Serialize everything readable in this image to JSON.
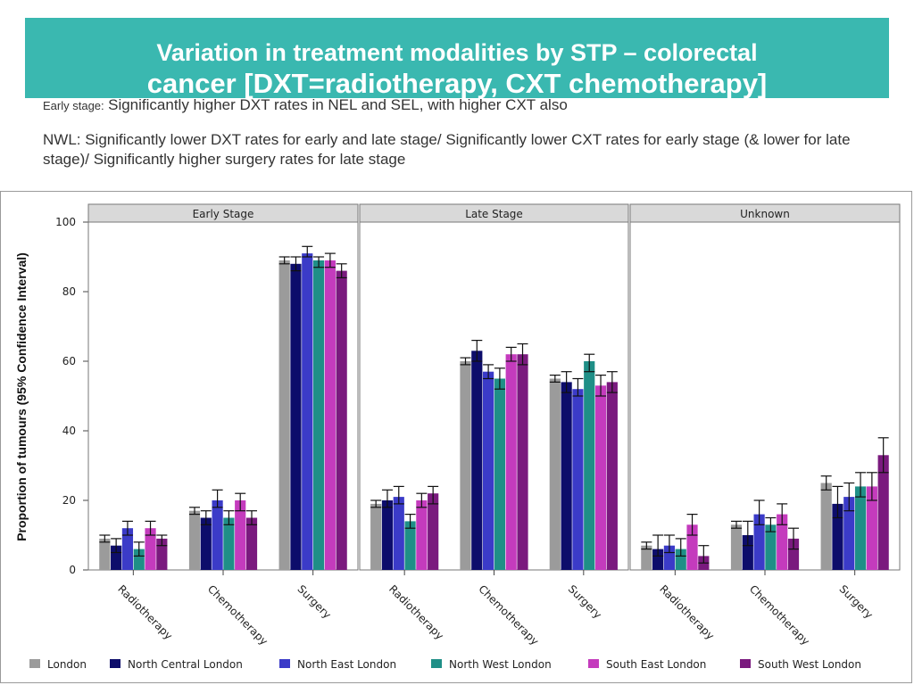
{
  "banner": {
    "line1": "Variation in treatment modalities by STP – colorectal",
    "line2": "cancer [DXT=radiotherapy, CXT chemotherapy]"
  },
  "notes": {
    "early_prefix": "Early stage:",
    "early_text": "Significantly higher DXT rates in NEL and SEL, with higher CXT also",
    "nwl_text": "NWL: Significantly lower DXT rates for early and late stage/ Significantly lower CXT rates for early stage (& lower for late stage)/ Significantly higher surgery rates for late stage"
  },
  "colors": {
    "London": "#9b9b9b",
    "North Central London": "#0d0d6b",
    "North East London": "#3b3bc8",
    "North West London": "#1f8f87",
    "South East London": "#c43bbd",
    "South West London": "#7a1a7e"
  },
  "chart_data": {
    "type": "bar",
    "ylabel": "Proportion of tumours (95% Confidence Interval)",
    "ylim": [
      0,
      100
    ],
    "yticks": [
      0,
      20,
      40,
      60,
      80,
      100
    ],
    "panels": [
      "Early Stage",
      "Late Stage",
      "Unknown"
    ],
    "categories": [
      "Radiotherapy",
      "Chemotherapy",
      "Surgery"
    ],
    "series": [
      {
        "name": "London",
        "values": [
          [
            9,
            17,
            89
          ],
          [
            19,
            60,
            55
          ],
          [
            7,
            13,
            25
          ]
        ],
        "lo": [
          [
            8,
            16,
            88
          ],
          [
            18,
            59,
            54
          ],
          [
            6,
            12,
            23
          ]
        ],
        "hi": [
          [
            10,
            18,
            90
          ],
          [
            20,
            61,
            56
          ],
          [
            8,
            14,
            27
          ]
        ]
      },
      {
        "name": "North Central London",
        "values": [
          [
            7,
            15,
            88
          ],
          [
            20,
            63,
            54
          ],
          [
            6,
            10,
            19
          ]
        ],
        "lo": [
          [
            5,
            13,
            86
          ],
          [
            18,
            60,
            51
          ],
          [
            4,
            7,
            15
          ]
        ],
        "hi": [
          [
            9,
            17,
            90
          ],
          [
            23,
            66,
            57
          ],
          [
            10,
            14,
            24
          ]
        ]
      },
      {
        "name": "North East London",
        "values": [
          [
            12,
            20,
            91
          ],
          [
            21,
            57,
            52
          ],
          [
            7,
            16,
            21
          ]
        ],
        "lo": [
          [
            10,
            18,
            90
          ],
          [
            19,
            55,
            50
          ],
          [
            5,
            13,
            17
          ]
        ],
        "hi": [
          [
            14,
            23,
            93
          ],
          [
            24,
            59,
            55
          ],
          [
            10,
            20,
            25
          ]
        ]
      },
      {
        "name": "North West London",
        "values": [
          [
            6,
            15,
            89
          ],
          [
            14,
            55,
            60
          ],
          [
            6,
            13,
            24
          ]
        ],
        "lo": [
          [
            4,
            13,
            87
          ],
          [
            12,
            52,
            57
          ],
          [
            4,
            11,
            21
          ]
        ],
        "hi": [
          [
            8,
            17,
            90
          ],
          [
            16,
            58,
            62
          ],
          [
            9,
            15,
            28
          ]
        ]
      },
      {
        "name": "South East London",
        "values": [
          [
            12,
            20,
            89
          ],
          [
            20,
            62,
            53
          ],
          [
            13,
            16,
            24
          ]
        ],
        "lo": [
          [
            10,
            17,
            87
          ],
          [
            18,
            60,
            50
          ],
          [
            10,
            13,
            20
          ]
        ],
        "hi": [
          [
            14,
            22,
            91
          ],
          [
            22,
            64,
            56
          ],
          [
            16,
            19,
            28
          ]
        ]
      },
      {
        "name": "South West London",
        "values": [
          [
            9,
            15,
            86
          ],
          [
            22,
            62,
            54
          ],
          [
            4,
            9,
            33
          ]
        ],
        "lo": [
          [
            7,
            13,
            84
          ],
          [
            19,
            59,
            51
          ],
          [
            2,
            6,
            28
          ]
        ],
        "hi": [
          [
            10,
            17,
            88
          ],
          [
            24,
            65,
            57
          ],
          [
            7,
            12,
            38
          ]
        ]
      }
    ]
  }
}
